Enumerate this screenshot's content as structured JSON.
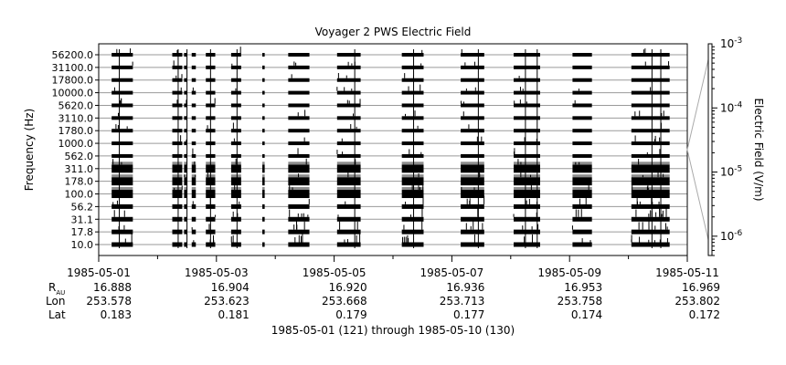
{
  "chart_data": {
    "type": "heatmap",
    "title": "Voyager 2 PWS Electric Field",
    "ylabel": "Frequency (Hz)",
    "colorbar_label": "Electric Field (V/m)",
    "colorbar_scale": "log",
    "colorbar_range": [
      5e-07,
      0.001
    ],
    "colorbar_ticks": [
      {
        "base": "10",
        "exp": "-3",
        "value": 0.001
      },
      {
        "base": "10",
        "exp": "-4",
        "value": 0.0001
      },
      {
        "base": "10",
        "exp": "-5",
        "value": 1e-05
      },
      {
        "base": "10",
        "exp": "-6",
        "value": 1e-06
      }
    ],
    "channels": [
      "56200.0",
      "31100.0",
      "17800.0",
      "10000.0",
      "5620.0",
      "3110.0",
      "1780.0",
      "1000.0",
      "562.0",
      "311.0",
      "178.0",
      "100.0",
      "56.2",
      "31.1",
      "17.8",
      "10.0"
    ],
    "x_range_days": [
      0,
      10
    ],
    "x_tick_labels": [
      "1985-05-01",
      "1985-05-03",
      "1985-05-05",
      "1985-05-07",
      "1985-05-09",
      "1985-05-11"
    ],
    "x_tick_days": [
      0,
      2,
      4,
      6,
      8,
      10
    ],
    "data_segments_days": [
      [
        0.22,
        0.58
      ],
      [
        1.25,
        1.42
      ],
      [
        1.45,
        1.5
      ],
      [
        1.58,
        1.65
      ],
      [
        1.82,
        1.98
      ],
      [
        2.25,
        2.42
      ],
      [
        2.78,
        2.82
      ],
      [
        3.22,
        3.58
      ],
      [
        4.05,
        4.45
      ],
      [
        5.15,
        5.52
      ],
      [
        6.15,
        6.55
      ],
      [
        7.05,
        7.5
      ],
      [
        8.05,
        8.38
      ],
      [
        9.05,
        9.7
      ]
    ],
    "ephemeris": {
      "row_labels": {
        "r_main": "R",
        "r_sub": "AU",
        "lon": "Lon",
        "lat": "Lat"
      },
      "columns": [
        {
          "r": "16.888",
          "lon": "253.578",
          "lat": "0.183"
        },
        {
          "r": "16.904",
          "lon": "253.623",
          "lat": "0.181"
        },
        {
          "r": "16.920",
          "lon": "253.668",
          "lat": "0.179"
        },
        {
          "r": "16.936",
          "lon": "253.713",
          "lat": "0.177"
        },
        {
          "r": "16.953",
          "lon": "253.758",
          "lat": "0.174"
        },
        {
          "r": "16.969",
          "lon": "253.802",
          "lat": "0.172"
        }
      ]
    },
    "footer": "1985-05-01 (121) through 1985-05-10 (130)"
  }
}
